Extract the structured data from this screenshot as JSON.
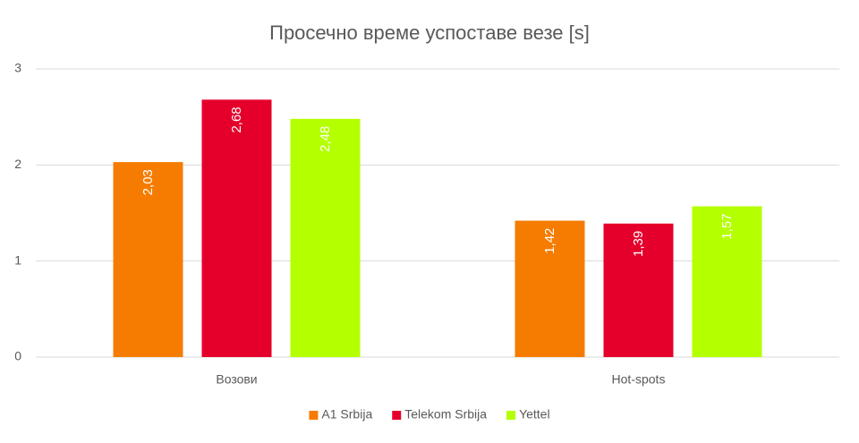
{
  "chart_data": {
    "type": "bar",
    "title": "Просечно време успоставе везе [s]",
    "categories": [
      "Возови",
      "Hot-spots"
    ],
    "series": [
      {
        "name": "A1 Srbija",
        "color": "#f57c00",
        "values": [
          2.03,
          1.42
        ],
        "value_labels": [
          "2,03",
          "1,42"
        ]
      },
      {
        "name": "Telekom Srbija",
        "color": "#e4002b",
        "values": [
          2.68,
          1.39
        ],
        "value_labels": [
          "2,68",
          "1,39"
        ]
      },
      {
        "name": "Yettel",
        "color": "#b4ff00",
        "values": [
          2.48,
          1.57
        ],
        "value_labels": [
          "2,48",
          "1,57"
        ]
      }
    ],
    "ylim": [
      0,
      3
    ],
    "yticks": [
      0,
      1,
      2,
      3
    ],
    "grid": true,
    "legend": "bottom"
  }
}
